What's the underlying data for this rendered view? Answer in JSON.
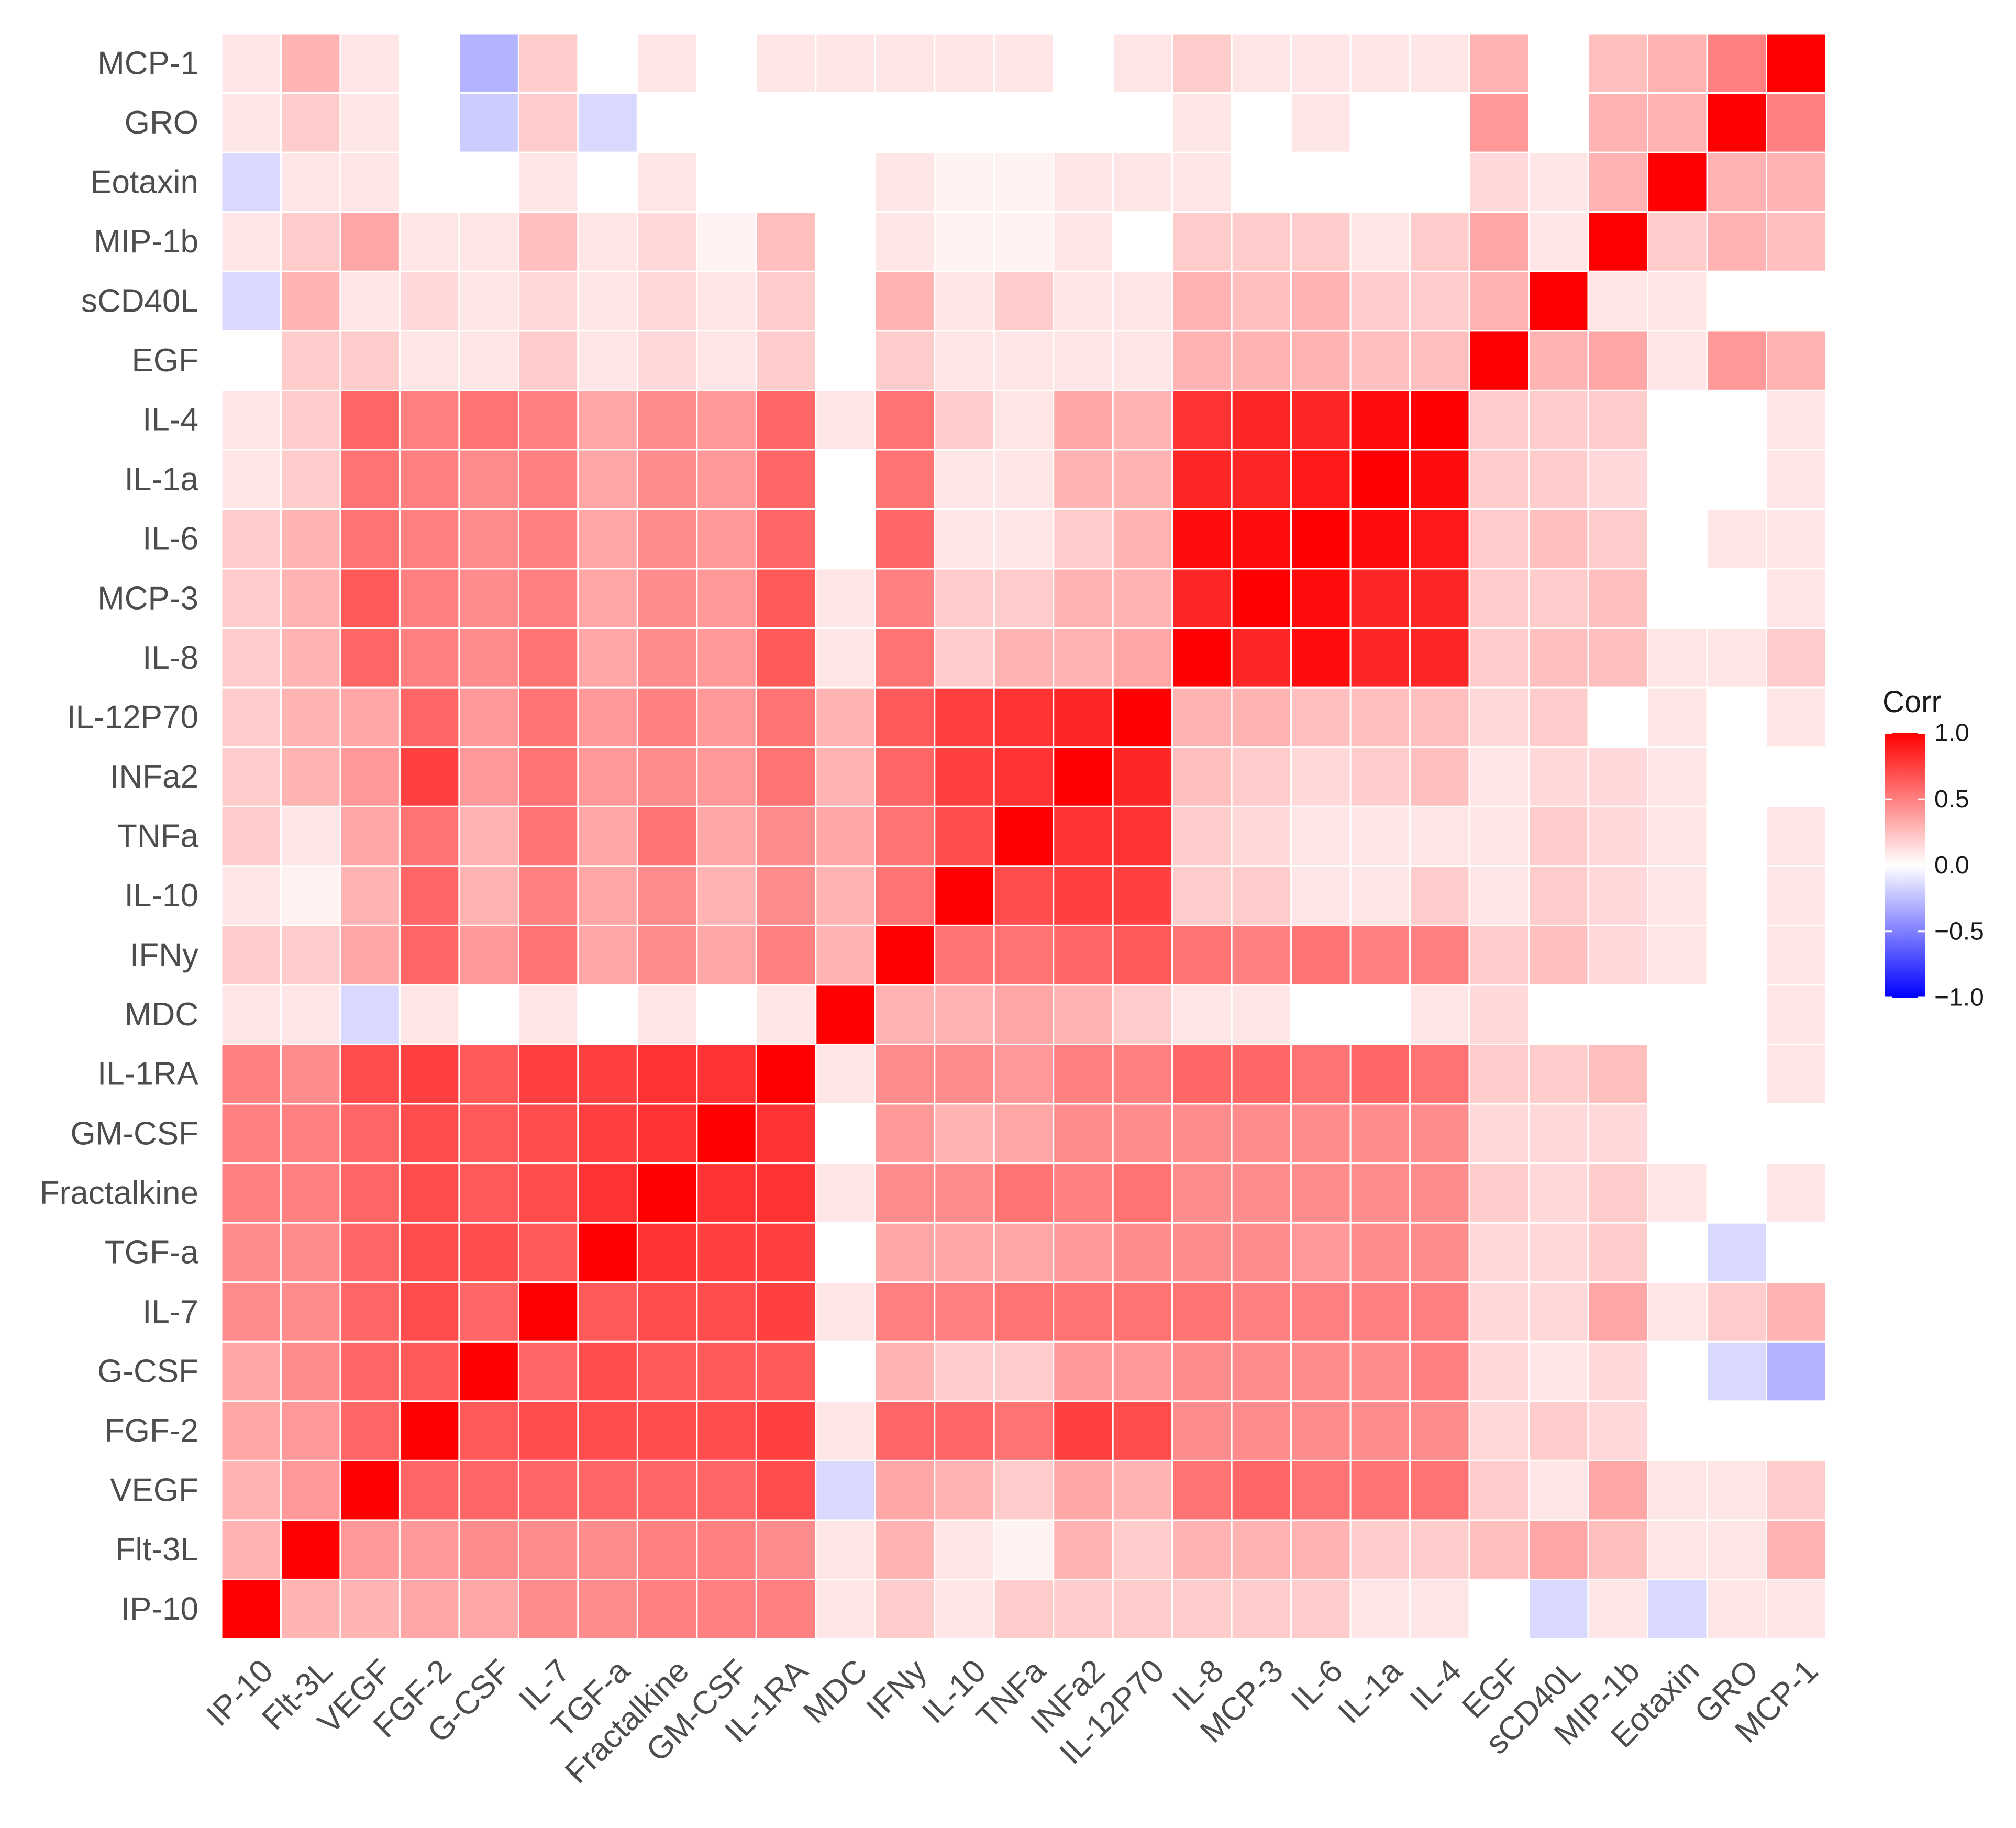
{
  "chart_data": {
    "type": "heatmap",
    "title": "",
    "xlabel": "",
    "ylabel": "",
    "variables": [
      "IP-10",
      "Flt-3L",
      "VEGF",
      "FGF-2",
      "G-CSF",
      "IL-7",
      "TGF-a",
      "Fractalkine",
      "GM-CSF",
      "IL-1RA",
      "MDC",
      "IFNy",
      "IL-10",
      "TNFa",
      "INFa2",
      "IL-12P70",
      "IL-8",
      "MCP-3",
      "IL-6",
      "IL-1a",
      "IL-4",
      "EGF",
      "sCD40L",
      "MIP-1b",
      "Eotaxin",
      "GRO",
      "MCP-1"
    ],
    "x_categories": [
      "IP-10",
      "Flt-3L",
      "VEGF",
      "FGF-2",
      "G-CSF",
      "IL-7",
      "TGF-a",
      "Fractalkine",
      "GM-CSF",
      "IL-1RA",
      "MDC",
      "IFNy",
      "IL-10",
      "TNFa",
      "INFa2",
      "IL-12P70",
      "IL-8",
      "MCP-3",
      "IL-6",
      "IL-1a",
      "IL-4",
      "EGF",
      "sCD40L",
      "MIP-1b",
      "Eotaxin",
      "GRO",
      "MCP-1"
    ],
    "y_categories_bottom_to_top": [
      "IP-10",
      "Flt-3L",
      "VEGF",
      "FGF-2",
      "G-CSF",
      "IL-7",
      "TGF-a",
      "Fractalkine",
      "GM-CSF",
      "IL-1RA",
      "MDC",
      "IFNy",
      "IL-10",
      "TNFa",
      "INFa2",
      "IL-12P70",
      "IL-8",
      "MCP-3",
      "IL-6",
      "IL-1a",
      "IL-4",
      "EGF",
      "sCD40L",
      "MIP-1b",
      "Eotaxin",
      "GRO",
      "MCP-1"
    ],
    "matrix_note": "matrix[i][j] = correlation between variables[i] and variables[j]; null = blank (non-significant) cell",
    "matrix": [
      [
        1.0,
        0.3,
        0.3,
        0.35,
        0.35,
        0.45,
        0.45,
        0.5,
        0.5,
        0.5,
        0.1,
        0.2,
        0.1,
        0.2,
        0.2,
        0.2,
        0.2,
        0.2,
        0.2,
        0.1,
        0.1,
        null,
        -0.15,
        0.1,
        -0.15,
        0.1,
        0.1
      ],
      [
        0.3,
        1.0,
        0.4,
        0.4,
        0.45,
        0.45,
        0.45,
        0.5,
        0.5,
        0.45,
        0.1,
        0.2,
        0.05,
        0.1,
        0.3,
        0.3,
        0.3,
        0.3,
        0.3,
        0.2,
        0.2,
        0.2,
        0.3,
        0.2,
        0.1,
        0.2,
        0.3
      ],
      [
        0.3,
        0.4,
        1.0,
        0.6,
        0.6,
        0.6,
        0.6,
        0.6,
        0.6,
        0.7,
        -0.15,
        0.35,
        0.3,
        0.35,
        0.4,
        0.35,
        0.6,
        0.65,
        0.55,
        0.55,
        0.6,
        0.2,
        0.1,
        0.35,
        0.1,
        0.1,
        0.1
      ],
      [
        0.35,
        0.4,
        0.6,
        1.0,
        0.65,
        0.7,
        0.7,
        0.7,
        0.7,
        0.75,
        0.1,
        0.6,
        0.6,
        0.55,
        0.75,
        0.6,
        0.5,
        0.5,
        0.5,
        0.5,
        0.5,
        0.1,
        0.15,
        0.1,
        null,
        null,
        null
      ],
      [
        0.35,
        0.45,
        0.6,
        0.65,
        1.0,
        0.6,
        0.7,
        0.65,
        0.65,
        0.65,
        null,
        0.4,
        0.3,
        0.3,
        0.4,
        0.4,
        0.45,
        0.45,
        0.45,
        0.45,
        0.55,
        0.1,
        0.1,
        0.1,
        null,
        -0.2,
        -0.3
      ],
      [
        0.45,
        0.45,
        0.6,
        0.7,
        0.6,
        1.0,
        0.65,
        0.7,
        0.7,
        0.75,
        0.1,
        0.55,
        0.5,
        0.55,
        0.55,
        0.55,
        0.55,
        0.5,
        0.5,
        0.5,
        0.5,
        0.2,
        0.15,
        0.25,
        0.1,
        0.2,
        0.2
      ],
      [
        0.45,
        0.45,
        0.6,
        0.7,
        0.7,
        0.65,
        1.0,
        0.8,
        0.75,
        0.75,
        null,
        0.35,
        0.35,
        0.35,
        0.4,
        0.4,
        0.35,
        0.35,
        0.35,
        0.35,
        0.35,
        0.1,
        0.1,
        0.1,
        null,
        -0.15,
        null
      ],
      [
        0.5,
        0.5,
        0.6,
        0.7,
        0.65,
        0.7,
        0.8,
        1.0,
        0.8,
        0.8,
        0.1,
        0.45,
        0.45,
        0.55,
        0.45,
        0.5,
        0.45,
        0.45,
        0.45,
        0.45,
        0.45,
        0.15,
        0.15,
        0.15,
        0.1,
        null,
        0.1
      ],
      [
        0.5,
        0.5,
        0.6,
        0.7,
        0.65,
        0.7,
        0.75,
        0.8,
        1.0,
        0.8,
        null,
        0.35,
        0.3,
        0.35,
        0.4,
        0.4,
        0.4,
        0.4,
        0.4,
        0.4,
        0.4,
        0.1,
        0.1,
        0.05,
        null,
        null,
        null
      ],
      [
        0.5,
        0.45,
        0.7,
        0.75,
        0.65,
        0.75,
        0.75,
        0.8,
        0.8,
        1.0,
        0.1,
        0.5,
        0.45,
        0.45,
        0.55,
        0.55,
        0.65,
        0.65,
        0.6,
        0.6,
        0.6,
        0.2,
        0.2,
        0.25,
        null,
        null,
        0.1
      ],
      [
        0.1,
        0.1,
        -0.15,
        0.1,
        null,
        0.1,
        null,
        0.1,
        null,
        0.1,
        1.0,
        0.3,
        0.3,
        0.35,
        0.3,
        0.3,
        0.1,
        0.1,
        null,
        null,
        0.1,
        null,
        null,
        null,
        null,
        null,
        0.1
      ],
      [
        0.2,
        0.3,
        0.35,
        0.6,
        0.3,
        0.5,
        0.35,
        0.45,
        0.4,
        0.45,
        0.3,
        1.0,
        0.55,
        0.55,
        0.6,
        0.65,
        0.55,
        0.5,
        0.6,
        0.55,
        0.55,
        0.2,
        0.3,
        0.1,
        0.1,
        null,
        0.1
      ],
      [
        0.1,
        0.1,
        0.3,
        0.6,
        0.2,
        0.5,
        0.35,
        0.45,
        0.3,
        0.45,
        0.3,
        0.55,
        1.0,
        0.7,
        0.75,
        0.75,
        0.2,
        0.2,
        0.1,
        0.1,
        0.2,
        0.1,
        0.1,
        0.05,
        0.05,
        null,
        0.1
      ],
      [
        0.2,
        0.05,
        0.2,
        0.55,
        0.2,
        0.55,
        0.35,
        0.55,
        0.35,
        0.4,
        0.35,
        0.55,
        0.7,
        1.0,
        0.8,
        0.8,
        0.3,
        0.2,
        0.1,
        0.1,
        0.1,
        0.1,
        0.2,
        0.05,
        0.05,
        null,
        0.1
      ],
      [
        0.2,
        0.3,
        0.35,
        0.75,
        0.4,
        0.55,
        0.4,
        0.5,
        0.45,
        0.5,
        0.3,
        0.6,
        0.75,
        0.8,
        1.0,
        0.85,
        0.3,
        0.3,
        0.2,
        0.3,
        0.35,
        0.1,
        0.1,
        0.1,
        0.1,
        null,
        null
      ],
      [
        0.2,
        0.2,
        0.3,
        0.7,
        0.4,
        0.55,
        0.45,
        0.55,
        0.45,
        0.5,
        0.2,
        0.65,
        0.75,
        0.8,
        0.85,
        1.0,
        0.35,
        0.3,
        0.3,
        0.3,
        0.3,
        0.1,
        0.1,
        null,
        0.1,
        null,
        0.1
      ],
      [
        0.2,
        0.3,
        0.55,
        0.45,
        0.45,
        0.55,
        0.45,
        0.45,
        0.45,
        0.6,
        0.1,
        0.55,
        0.2,
        0.2,
        0.25,
        0.3,
        1.0,
        0.85,
        0.95,
        0.85,
        0.8,
        0.3,
        0.3,
        0.2,
        0.1,
        0.1,
        0.2
      ],
      [
        0.2,
        0.3,
        0.6,
        0.45,
        0.45,
        0.5,
        0.45,
        0.45,
        0.45,
        0.6,
        0.1,
        0.5,
        0.2,
        0.15,
        0.2,
        0.3,
        0.85,
        1.0,
        0.95,
        0.85,
        0.85,
        0.3,
        0.25,
        0.2,
        null,
        null,
        0.1
      ],
      [
        0.2,
        0.3,
        0.55,
        0.45,
        0.45,
        0.5,
        0.4,
        0.45,
        0.45,
        0.55,
        null,
        0.55,
        0.1,
        0.1,
        0.15,
        0.25,
        0.95,
        0.95,
        1.0,
        0.9,
        0.85,
        0.3,
        0.3,
        0.2,
        null,
        0.1,
        0.1
      ],
      [
        0.1,
        0.2,
        0.55,
        0.45,
        0.45,
        0.5,
        0.45,
        0.45,
        0.45,
        0.6,
        null,
        0.5,
        0.1,
        0.1,
        0.2,
        0.25,
        0.85,
        0.85,
        0.95,
        1.0,
        0.95,
        0.25,
        0.2,
        0.1,
        null,
        null,
        0.1
      ],
      [
        0.1,
        0.2,
        0.55,
        0.45,
        0.5,
        0.5,
        0.45,
        0.45,
        0.45,
        0.55,
        0.1,
        0.5,
        0.2,
        0.1,
        0.25,
        0.25,
        0.85,
        0.85,
        0.9,
        0.95,
        1.0,
        0.25,
        0.2,
        0.2,
        null,
        null,
        0.1
      ],
      [
        null,
        0.25,
        0.2,
        0.15,
        0.15,
        0.15,
        0.15,
        0.2,
        0.15,
        0.2,
        0.15,
        0.2,
        0.1,
        0.1,
        0.1,
        0.15,
        0.2,
        0.2,
        0.2,
        0.2,
        0.2,
        1.0,
        0.3,
        0.35,
        0.15,
        0.4,
        0.3
      ],
      [
        -0.15,
        0.35,
        0.1,
        0.2,
        0.1,
        0.15,
        0.15,
        0.15,
        0.15,
        0.2,
        null,
        0.25,
        0.2,
        0.2,
        0.15,
        0.2,
        0.25,
        0.2,
        0.25,
        0.2,
        0.2,
        0.3,
        1.0,
        0.1,
        0.1,
        null,
        null
      ],
      [
        0.1,
        0.25,
        0.35,
        0.15,
        0.15,
        0.35,
        0.2,
        0.2,
        0.15,
        0.25,
        null,
        0.15,
        0.15,
        0.15,
        0.15,
        null,
        0.25,
        0.25,
        0.2,
        0.15,
        0.2,
        0.35,
        0.1,
        1.0,
        0.3,
        0.3,
        0.25
      ],
      [
        -0.15,
        0.1,
        0.1,
        null,
        null,
        0.1,
        null,
        0.1,
        null,
        null,
        null,
        0.1,
        0.1,
        0.1,
        0.1,
        0.1,
        0.1,
        null,
        null,
        null,
        null,
        0.1,
        0.1,
        0.2,
        1.0,
        0.3,
        0.3
      ],
      [
        0.1,
        0.1,
        0.1,
        null,
        -0.15,
        0.2,
        -0.15,
        null,
        null,
        null,
        null,
        null,
        null,
        null,
        null,
        null,
        0.1,
        null,
        0.1,
        null,
        null,
        0.4,
        null,
        0.3,
        0.3,
        1.0,
        0.5
      ],
      [
        0.1,
        0.3,
        0.2,
        null,
        -0.3,
        0.3,
        null,
        0.1,
        null,
        0.1,
        0.1,
        0.1,
        0.1,
        0.1,
        null,
        0.1,
        0.2,
        0.1,
        0.1,
        0.1,
        0.1,
        0.3,
        null,
        0.25,
        0.3,
        0.5,
        1.0
      ]
    ],
    "color_scale": {
      "limits": [
        -1,
        1
      ],
      "low": "#0000ff",
      "mid": "#ffffff",
      "high": "#ff0000",
      "na_color": "#ffffff",
      "grid_color": "#ffffff"
    },
    "legend": {
      "title": "Corr",
      "position": "right",
      "ticks": [
        "1.0",
        "0.5",
        "0.0",
        "−0.5",
        "−1.0"
      ],
      "tick_values": [
        1.0,
        0.5,
        0.0,
        -0.5,
        -1.0
      ]
    }
  }
}
